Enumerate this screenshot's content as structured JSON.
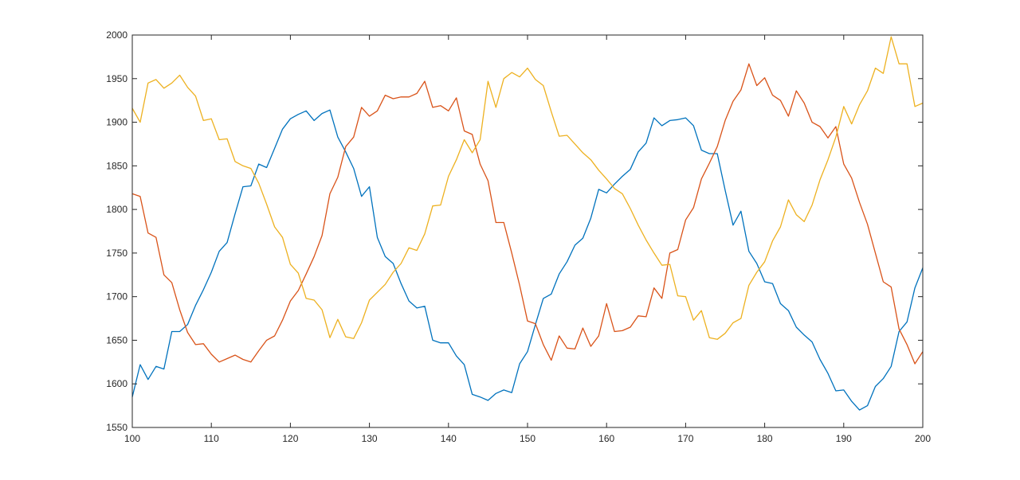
{
  "chart_data": {
    "type": "line",
    "title": "",
    "xlabel": "",
    "ylabel": "",
    "xlim": [
      100,
      200
    ],
    "ylim": [
      1550,
      2000
    ],
    "x_ticks": [
      100,
      110,
      120,
      130,
      140,
      150,
      160,
      170,
      180,
      190,
      200
    ],
    "y_ticks": [
      1550,
      1600,
      1650,
      1700,
      1750,
      1800,
      1850,
      1900,
      1950,
      2000
    ],
    "x_tick_labels": [
      "100",
      "110",
      "120",
      "130",
      "140",
      "150",
      "160",
      "170",
      "180",
      "190",
      "200"
    ],
    "y_tick_labels": [
      "1550",
      "1600",
      "1650",
      "1700",
      "1750",
      "1800",
      "1850",
      "1900",
      "1950",
      "2000"
    ],
    "grid": false,
    "legend": "none",
    "x": [
      100,
      101,
      102,
      103,
      104,
      105,
      106,
      107,
      108,
      109,
      110,
      111,
      112,
      113,
      114,
      115,
      116,
      117,
      118,
      119,
      120,
      121,
      122,
      123,
      124,
      125,
      126,
      127,
      128,
      129,
      130,
      131,
      132,
      133,
      134,
      135,
      136,
      137,
      138,
      139,
      140,
      141,
      142,
      143,
      144,
      145,
      146,
      147,
      148,
      149,
      150,
      151,
      152,
      153,
      154,
      155,
      156,
      157,
      158,
      159,
      160,
      161,
      162,
      163,
      164,
      165,
      166,
      167,
      168,
      169,
      170,
      171,
      172,
      173,
      174,
      175,
      176,
      177,
      178,
      179,
      180,
      181,
      182,
      183,
      184,
      185,
      186,
      187,
      188,
      189,
      190,
      191,
      192,
      193,
      194,
      195,
      196,
      197,
      198,
      199,
      200
    ],
    "series": [
      {
        "color": "#0072BD",
        "values": [
          1585,
          1622,
          1605,
          1620,
          1617,
          1660,
          1660,
          1668,
          1690,
          1708,
          1728,
          1752,
          1762,
          1795,
          1826,
          1827,
          1852,
          1848,
          1870,
          1892,
          1904,
          1909,
          1913,
          1902,
          1910,
          1914,
          1883,
          1866,
          1847,
          1815,
          1826,
          1768,
          1746,
          1738,
          1715,
          1695,
          1687,
          1689,
          1650,
          1647,
          1647,
          1632,
          1622,
          1588,
          1585,
          1581,
          1589,
          1593,
          1590,
          1623,
          1637,
          1668,
          1698,
          1703,
          1726,
          1740,
          1759,
          1767,
          1790,
          1823,
          1819,
          1829,
          1838,
          1846,
          1866,
          1876,
          1905,
          1896,
          1902,
          1903,
          1905,
          1896,
          1868,
          1864,
          1864,
          1822,
          1782,
          1798,
          1752,
          1738,
          1717,
          1715,
          1692,
          1684,
          1665,
          1656,
          1648,
          1628,
          1612,
          1592,
          1593,
          1580,
          1570,
          1575,
          1597,
          1606,
          1620,
          1660,
          1671,
          1710,
          1733
        ]
      },
      {
        "color": "#D95319",
        "values": [
          1818,
          1815,
          1773,
          1768,
          1725,
          1716,
          1685,
          1659,
          1645,
          1646,
          1634,
          1625,
          1629,
          1633,
          1628,
          1625,
          1638,
          1650,
          1655,
          1673,
          1695,
          1707,
          1726,
          1746,
          1770,
          1818,
          1837,
          1872,
          1883,
          1917,
          1907,
          1913,
          1931,
          1927,
          1929,
          1929,
          1933,
          1947,
          1917,
          1919,
          1913,
          1928,
          1890,
          1886,
          1852,
          1833,
          1785,
          1785,
          1750,
          1713,
          1672,
          1669,
          1645,
          1627,
          1655,
          1641,
          1640,
          1664,
          1643,
          1655,
          1692,
          1660,
          1661,
          1665,
          1678,
          1677,
          1710,
          1698,
          1750,
          1754,
          1788,
          1802,
          1835,
          1853,
          1872,
          1902,
          1924,
          1937,
          1967,
          1942,
          1951,
          1931,
          1925,
          1907,
          1936,
          1922,
          1900,
          1895,
          1882,
          1895,
          1852,
          1836,
          1808,
          1783,
          1750,
          1717,
          1711,
          1663,
          1645,
          1623,
          1637
        ]
      },
      {
        "color": "#EDB120",
        "values": [
          1916,
          1900,
          1945,
          1949,
          1939,
          1945,
          1954,
          1940,
          1930,
          1902,
          1904,
          1880,
          1881,
          1855,
          1850,
          1847,
          1830,
          1806,
          1780,
          1768,
          1737,
          1727,
          1698,
          1696,
          1685,
          1653,
          1674,
          1654,
          1652,
          1670,
          1696,
          1705,
          1714,
          1728,
          1738,
          1756,
          1753,
          1772,
          1804,
          1805,
          1838,
          1857,
          1880,
          1865,
          1880,
          1947,
          1917,
          1950,
          1957,
          1952,
          1962,
          1949,
          1942,
          1912,
          1884,
          1885,
          1875,
          1865,
          1857,
          1845,
          1835,
          1824,
          1818,
          1801,
          1782,
          1765,
          1750,
          1736,
          1737,
          1701,
          1700,
          1673,
          1684,
          1653,
          1651,
          1658,
          1670,
          1675,
          1713,
          1728,
          1740,
          1764,
          1780,
          1811,
          1794,
          1786,
          1805,
          1834,
          1857,
          1883,
          1918,
          1898,
          1920,
          1936,
          1962,
          1956,
          1998,
          1967,
          1967,
          1918,
          1922
        ]
      }
    ]
  }
}
